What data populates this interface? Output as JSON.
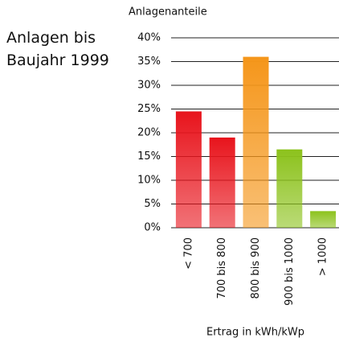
{
  "chart_data": {
    "type": "bar",
    "title": "Anlagen bis Baujahr 1999",
    "y_label": "Anlagenanteile",
    "x_label": "Ertrag in kWh/kWp",
    "categories": [
      "< 700",
      "700 bis 800",
      "800 bis 900",
      "900 bis 1000",
      "> 1000"
    ],
    "values": [
      24.5,
      19,
      36,
      16.5,
      3.5
    ],
    "colors": [
      "#e8141c",
      "#e8141c",
      "#f5961a",
      "#8cc21c",
      "#8cc21c"
    ],
    "ylim": [
      0,
      40
    ],
    "yticks": [
      {
        "value": 0,
        "label": "0%"
      },
      {
        "value": 5,
        "label": "5%"
      },
      {
        "value": 10,
        "label": "10%"
      },
      {
        "value": 15,
        "label": "15%"
      },
      {
        "value": 20,
        "label": "20%"
      },
      {
        "value": 25,
        "label": "25%"
      },
      {
        "value": 30,
        "label": "30%"
      },
      {
        "value": 35,
        "label": "35%"
      },
      {
        "value": 40,
        "label": "40%"
      }
    ],
    "grid": true
  }
}
